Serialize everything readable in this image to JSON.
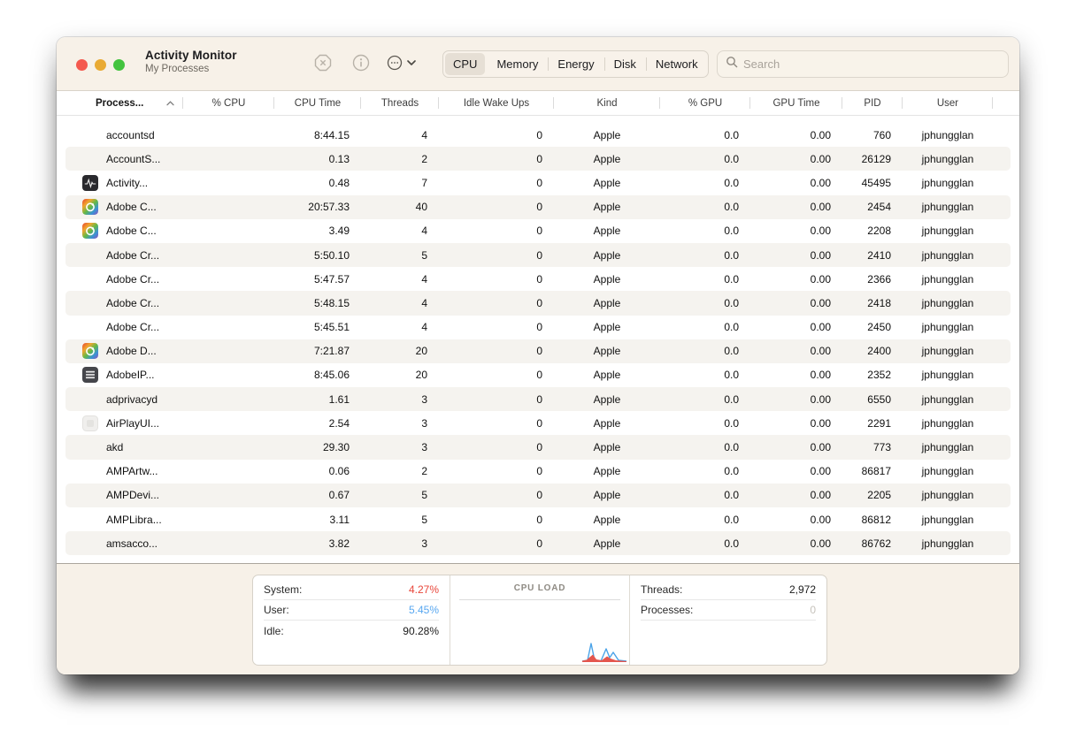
{
  "window": {
    "title": "Activity Monitor",
    "subtitle": "My Processes",
    "traffic_lights": {
      "close": "#f4594e",
      "minimize": "#e9aa33",
      "zoom": "#43c33e"
    },
    "toolbar": {
      "buttons": [
        {
          "name": "stop-process",
          "icon": "octagon-x-icon"
        },
        {
          "name": "inspect-process",
          "icon": "info-circle-icon"
        },
        {
          "name": "actions-menu",
          "icon": "ellipsis-circle-chevron-icon"
        }
      ],
      "tabs": [
        "CPU",
        "Memory",
        "Energy",
        "Disk",
        "Network"
      ],
      "selected_tab": "CPU",
      "search_placeholder": "Search"
    }
  },
  "table": {
    "sort_column": "Process...",
    "sort_direction": "ascending",
    "columns": [
      "Process...",
      "% CPU",
      "CPU Time",
      "Threads",
      "Idle Wake Ups",
      "Kind",
      "% GPU",
      "GPU Time",
      "PID",
      "User"
    ],
    "rows": [
      {
        "name": "accountsd",
        "icon": "none",
        "pct_cpu": "",
        "cpu_time": "8:44.15",
        "threads": "4",
        "idle_wake_ups": "0",
        "kind": "Apple",
        "pct_gpu": "0.0",
        "gpu_time": "0.00",
        "pid": "760",
        "user": "jphungglan"
      },
      {
        "name": "AccountS...",
        "icon": "none",
        "pct_cpu": "",
        "cpu_time": "0.13",
        "threads": "2",
        "idle_wake_ups": "0",
        "kind": "Apple",
        "pct_gpu": "0.0",
        "gpu_time": "0.00",
        "pid": "26129",
        "user": "jphungglan"
      },
      {
        "name": "Activity...",
        "icon": "activity-monitor-icon",
        "pct_cpu": "",
        "cpu_time": "0.48",
        "threads": "7",
        "idle_wake_ups": "0",
        "kind": "Apple",
        "pct_gpu": "0.0",
        "gpu_time": "0.00",
        "pid": "45495",
        "user": "jphungglan"
      },
      {
        "name": "Adobe C...",
        "icon": "creative-cloud-icon",
        "pct_cpu": "",
        "cpu_time": "20:57.33",
        "threads": "40",
        "idle_wake_ups": "0",
        "kind": "Apple",
        "pct_gpu": "0.0",
        "gpu_time": "0.00",
        "pid": "2454",
        "user": "jphungglan"
      },
      {
        "name": "Adobe C...",
        "icon": "creative-cloud-icon",
        "pct_cpu": "",
        "cpu_time": "3.49",
        "threads": "4",
        "idle_wake_ups": "0",
        "kind": "Apple",
        "pct_gpu": "0.0",
        "gpu_time": "0.00",
        "pid": "2208",
        "user": "jphungglan"
      },
      {
        "name": "Adobe Cr...",
        "icon": "none",
        "pct_cpu": "",
        "cpu_time": "5:50.10",
        "threads": "5",
        "idle_wake_ups": "0",
        "kind": "Apple",
        "pct_gpu": "0.0",
        "gpu_time": "0.00",
        "pid": "2410",
        "user": "jphungglan"
      },
      {
        "name": "Adobe Cr...",
        "icon": "none",
        "pct_cpu": "",
        "cpu_time": "5:47.57",
        "threads": "4",
        "idle_wake_ups": "0",
        "kind": "Apple",
        "pct_gpu": "0.0",
        "gpu_time": "0.00",
        "pid": "2366",
        "user": "jphungglan"
      },
      {
        "name": "Adobe Cr...",
        "icon": "none",
        "pct_cpu": "",
        "cpu_time": "5:48.15",
        "threads": "4",
        "idle_wake_ups": "0",
        "kind": "Apple",
        "pct_gpu": "0.0",
        "gpu_time": "0.00",
        "pid": "2418",
        "user": "jphungglan"
      },
      {
        "name": "Adobe Cr...",
        "icon": "none",
        "pct_cpu": "",
        "cpu_time": "5:45.51",
        "threads": "4",
        "idle_wake_ups": "0",
        "kind": "Apple",
        "pct_gpu": "0.0",
        "gpu_time": "0.00",
        "pid": "2450",
        "user": "jphungglan"
      },
      {
        "name": "Adobe D...",
        "icon": "creative-cloud-icon",
        "pct_cpu": "",
        "cpu_time": "7:21.87",
        "threads": "20",
        "idle_wake_ups": "0",
        "kind": "Apple",
        "pct_gpu": "0.0",
        "gpu_time": "0.00",
        "pid": "2400",
        "user": "jphungglan"
      },
      {
        "name": "AdobeIP...",
        "icon": "adobe-ipc-icon",
        "pct_cpu": "",
        "cpu_time": "8:45.06",
        "threads": "20",
        "idle_wake_ups": "0",
        "kind": "Apple",
        "pct_gpu": "0.0",
        "gpu_time": "0.00",
        "pid": "2352",
        "user": "jphungglan"
      },
      {
        "name": "adprivacyd",
        "icon": "none",
        "pct_cpu": "",
        "cpu_time": "1.61",
        "threads": "3",
        "idle_wake_ups": "0",
        "kind": "Apple",
        "pct_gpu": "0.0",
        "gpu_time": "0.00",
        "pid": "6550",
        "user": "jphungglan"
      },
      {
        "name": "AirPlayUI...",
        "icon": "airplay-ui-icon",
        "pct_cpu": "",
        "cpu_time": "2.54",
        "threads": "3",
        "idle_wake_ups": "0",
        "kind": "Apple",
        "pct_gpu": "0.0",
        "gpu_time": "0.00",
        "pid": "2291",
        "user": "jphungglan"
      },
      {
        "name": "akd",
        "icon": "none",
        "pct_cpu": "",
        "cpu_time": "29.30",
        "threads": "3",
        "idle_wake_ups": "0",
        "kind": "Apple",
        "pct_gpu": "0.0",
        "gpu_time": "0.00",
        "pid": "773",
        "user": "jphungglan"
      },
      {
        "name": "AMPArtw...",
        "icon": "none",
        "pct_cpu": "",
        "cpu_time": "0.06",
        "threads": "2",
        "idle_wake_ups": "0",
        "kind": "Apple",
        "pct_gpu": "0.0",
        "gpu_time": "0.00",
        "pid": "86817",
        "user": "jphungglan"
      },
      {
        "name": "AMPDevi...",
        "icon": "none",
        "pct_cpu": "",
        "cpu_time": "0.67",
        "threads": "5",
        "idle_wake_ups": "0",
        "kind": "Apple",
        "pct_gpu": "0.0",
        "gpu_time": "0.00",
        "pid": "2205",
        "user": "jphungglan"
      },
      {
        "name": "AMPLibra...",
        "icon": "none",
        "pct_cpu": "",
        "cpu_time": "3.11",
        "threads": "5",
        "idle_wake_ups": "0",
        "kind": "Apple",
        "pct_gpu": "0.0",
        "gpu_time": "0.00",
        "pid": "86812",
        "user": "jphungglan"
      },
      {
        "name": "amsacco...",
        "icon": "none",
        "pct_cpu": "",
        "cpu_time": "3.82",
        "threads": "3",
        "idle_wake_ups": "0",
        "kind": "Apple",
        "pct_gpu": "0.0",
        "gpu_time": "0.00",
        "pid": "86762",
        "user": "jphungglan"
      }
    ]
  },
  "footer": {
    "left_stats": [
      {
        "label": "System:",
        "value": "4.27%",
        "color": "#e8463a",
        "rule": true
      },
      {
        "label": "User:",
        "value": "5.45%",
        "color": "#57a7f0",
        "rule": true
      },
      {
        "label": "Idle:",
        "value": "90.28%",
        "color": "#1b1b1b",
        "rule": false
      }
    ],
    "cpu_load_label": "CPU LOAD",
    "right_stats": [
      {
        "label": "Threads:",
        "value": "2,972",
        "color": "#1b1b1b",
        "rule": true
      },
      {
        "label": "Processes:",
        "value": "0",
        "color": "#c6c2bb",
        "rule": true
      }
    ],
    "graph_colors": {
      "user_line": "#4aa3e8",
      "system_area": "#e4564e"
    }
  }
}
